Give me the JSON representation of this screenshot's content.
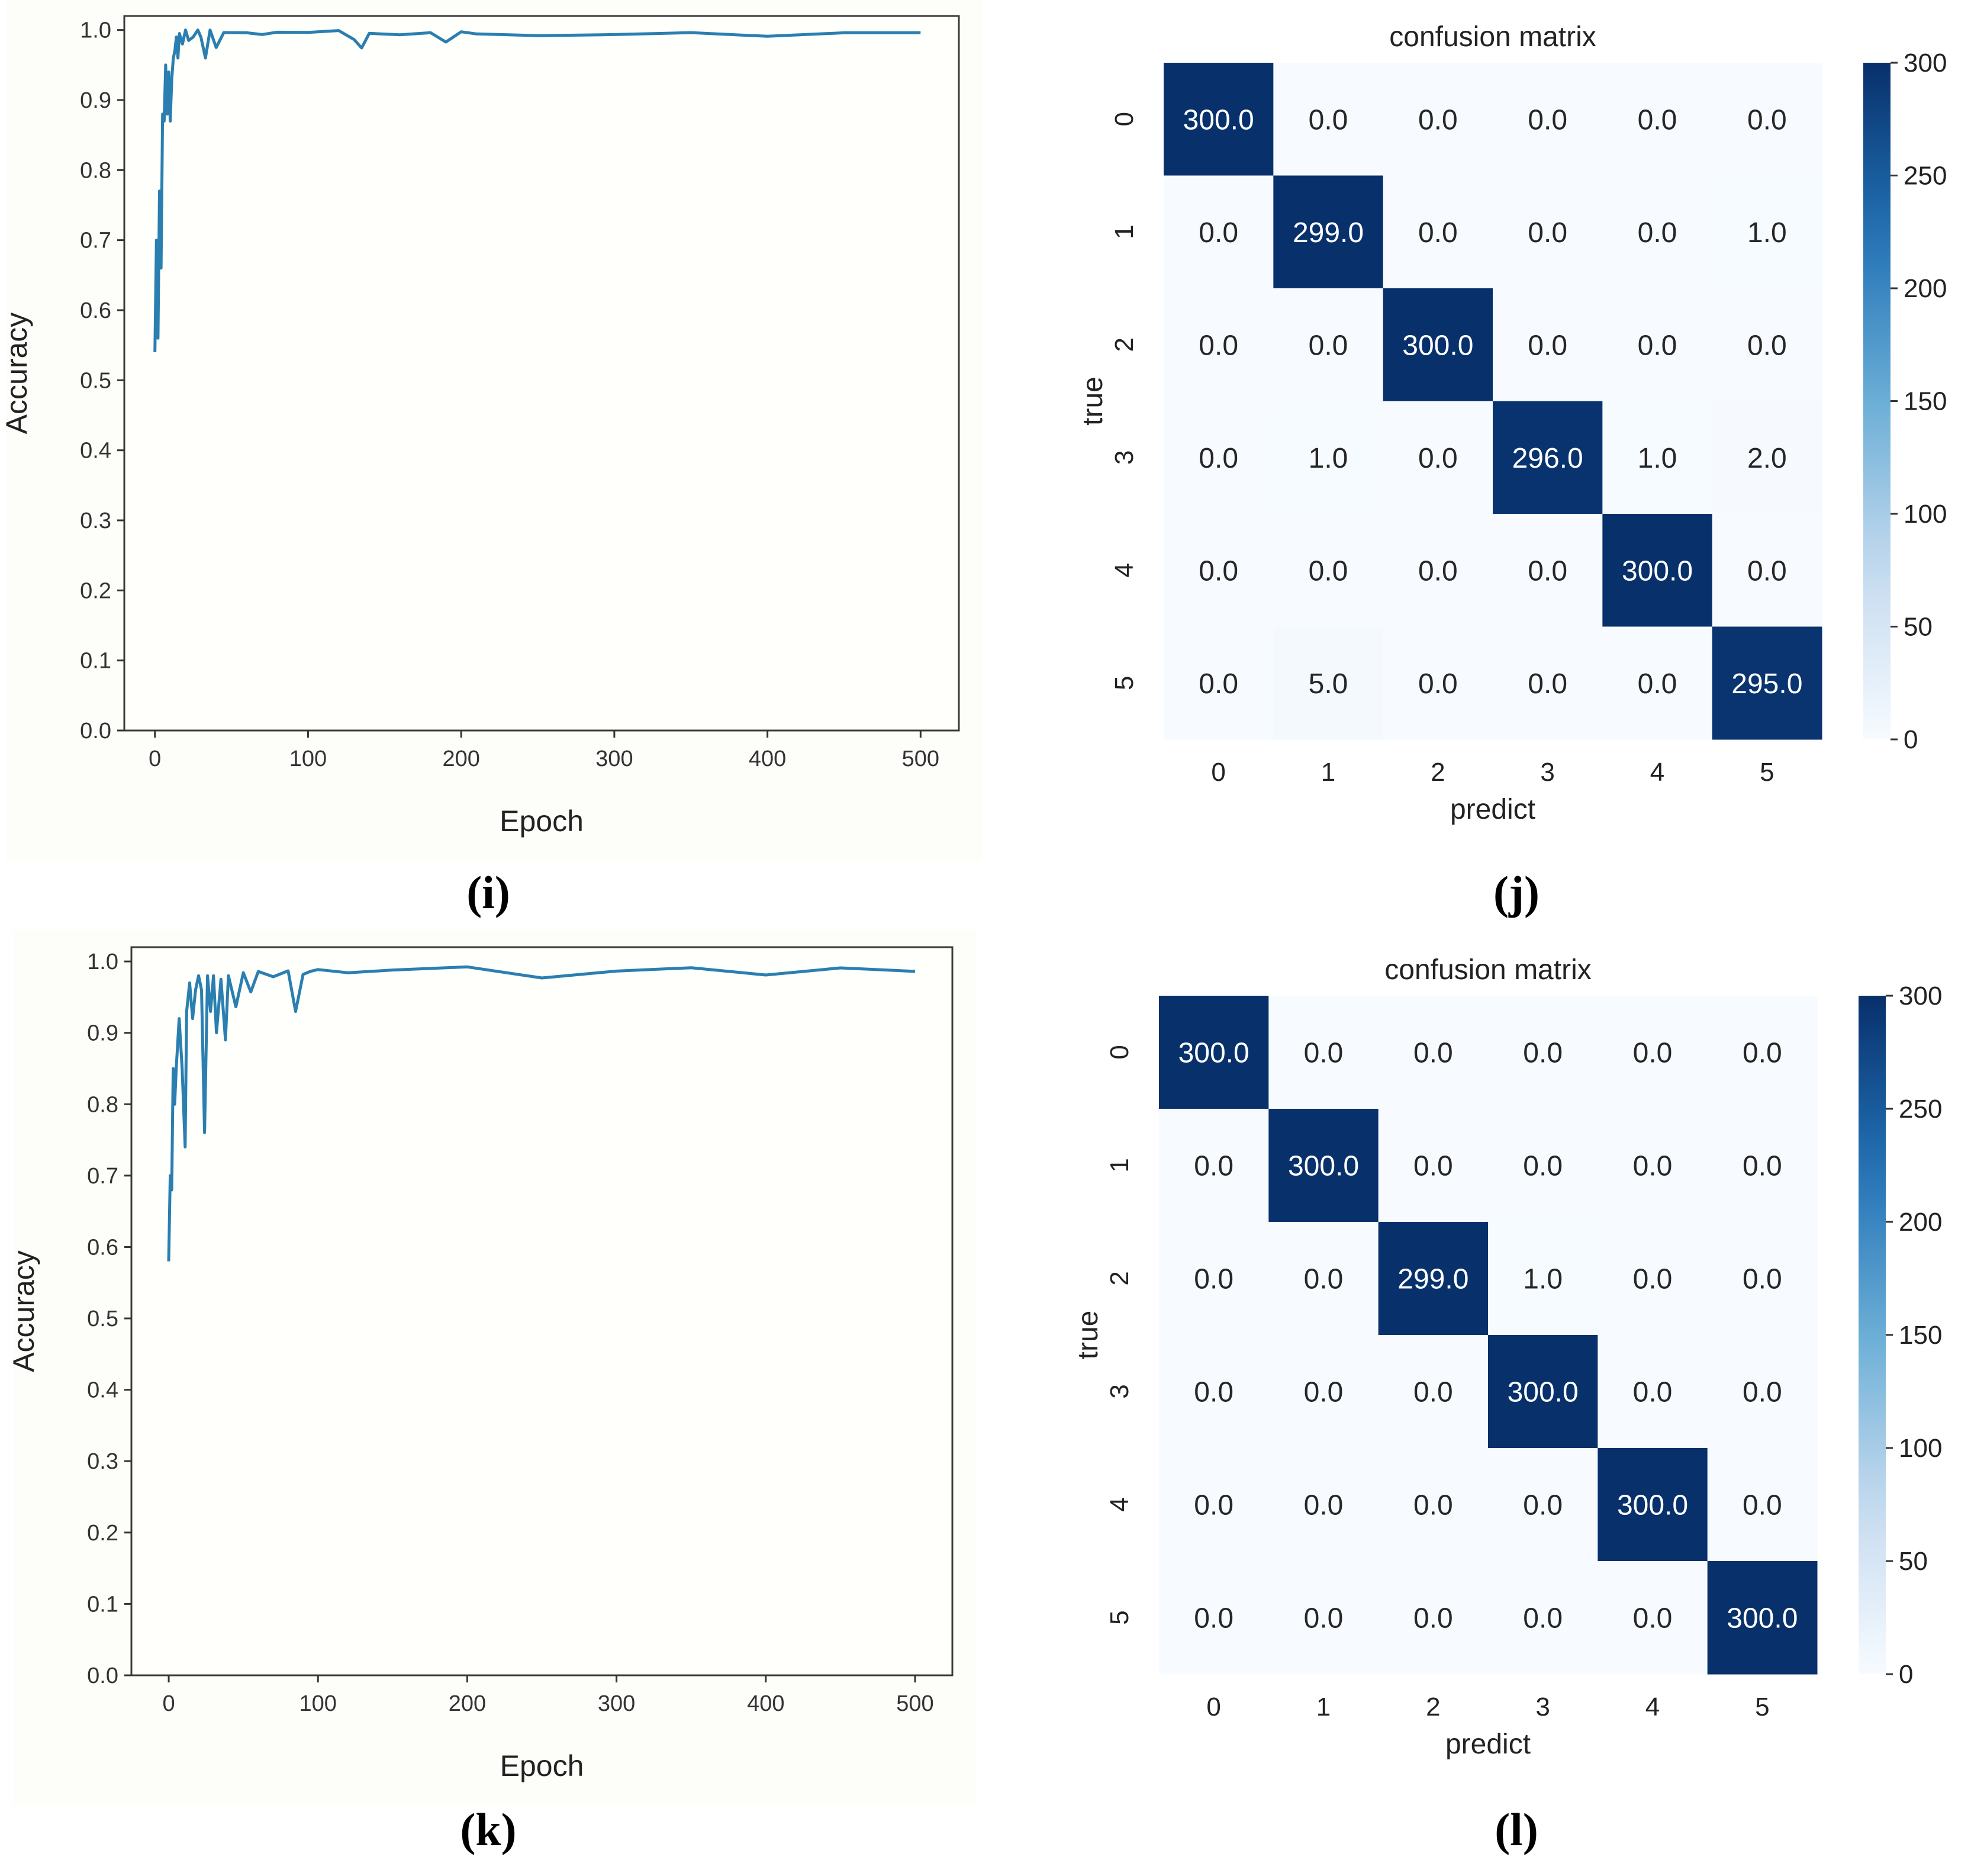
{
  "chart_data": [
    {
      "type": "line",
      "panel": "(i)",
      "xlabel": "Epoch",
      "ylabel": "Accuracy",
      "xlim": [
        -20,
        525
      ],
      "ylim": [
        0.0,
        1.02
      ],
      "xticks": [
        0,
        100,
        200,
        300,
        400,
        500
      ],
      "yticks": [
        0.0,
        0.1,
        0.2,
        0.3,
        0.4,
        0.5,
        0.6,
        0.7,
        0.8,
        0.9,
        1.0
      ],
      "color": "#2a7fb0",
      "series": [
        {
          "name": "accuracy",
          "x": [
            0,
            1,
            2,
            3,
            4,
            5,
            6,
            7,
            8,
            9,
            10,
            11,
            12,
            13,
            14,
            15,
            16,
            18,
            20,
            22,
            25,
            28,
            30,
            33,
            36,
            40,
            45,
            50,
            60,
            70,
            80,
            100,
            120,
            130,
            135,
            140,
            160,
            180,
            190,
            200,
            210,
            250,
            300,
            350,
            400,
            450,
            500
          ],
          "y": [
            0.54,
            0.7,
            0.56,
            0.77,
            0.66,
            0.88,
            0.87,
            0.95,
            0.88,
            0.94,
            0.87,
            0.93,
            0.96,
            0.97,
            0.99,
            0.96,
            0.995,
            0.98,
            1.0,
            0.985,
            0.99,
            1.0,
            0.99,
            0.96,
            1.0,
            0.975,
            1.0,
            0.997,
            1.0,
            0.995,
            1.0,
            0.998,
            1.0,
            0.99,
            0.975,
            0.998,
            0.997,
            1.0,
            0.985,
            1.0,
            0.998,
            0.995,
            0.997,
            1.0,
            0.995,
            1.0,
            1.0
          ]
        }
      ]
    },
    {
      "type": "heatmap",
      "panel": "(j)",
      "title": "confusion matrix",
      "xlabel": "predict",
      "ylabel": "true",
      "labels": [
        "0",
        "1",
        "2",
        "3",
        "4",
        "5"
      ],
      "matrix": [
        [
          "300.0",
          "0.0",
          "0.0",
          "0.0",
          "0.0",
          "0.0"
        ],
        [
          "0.0",
          "299.0",
          "0.0",
          "0.0",
          "0.0",
          "1.0"
        ],
        [
          "0.0",
          "0.0",
          "300.0",
          "0.0",
          "0.0",
          "0.0"
        ],
        [
          "0.0",
          "1.0",
          "0.0",
          "296.0",
          "1.0",
          "2.0"
        ],
        [
          "0.0",
          "0.0",
          "0.0",
          "0.0",
          "300.0",
          "0.0"
        ],
        [
          "0.0",
          "5.0",
          "0.0",
          "0.0",
          "0.0",
          "295.0"
        ]
      ],
      "colorbar": {
        "min": 0,
        "max": 300,
        "ticks": [
          "0",
          "50",
          "100",
          "150",
          "200",
          "250",
          "300"
        ]
      }
    },
    {
      "type": "line",
      "panel": "(k)",
      "xlabel": "Epoch",
      "ylabel": "Accuracy",
      "xlim": [
        -25,
        525
      ],
      "ylim": [
        0.0,
        1.02
      ],
      "xticks": [
        0,
        100,
        200,
        300,
        400,
        500
      ],
      "yticks": [
        0.0,
        0.1,
        0.2,
        0.3,
        0.4,
        0.5,
        0.6,
        0.7,
        0.8,
        0.9,
        1.0
      ],
      "color": "#2a7fb0",
      "series": [
        {
          "name": "accuracy",
          "x": [
            0,
            1,
            2,
            3,
            4,
            5,
            7,
            9,
            11,
            12,
            14,
            16,
            18,
            20,
            22,
            24,
            26,
            28,
            30,
            32,
            35,
            38,
            40,
            45,
            50,
            55,
            60,
            70,
            80,
            85,
            90,
            95,
            100,
            120,
            150,
            200,
            250,
            300,
            350,
            400,
            450,
            500
          ],
          "y": [
            0.58,
            0.7,
            0.68,
            0.85,
            0.8,
            0.85,
            0.92,
            0.85,
            0.74,
            0.93,
            0.97,
            0.92,
            0.96,
            0.98,
            0.96,
            0.76,
            0.98,
            0.93,
            0.98,
            0.9,
            0.975,
            0.89,
            0.98,
            0.94,
            0.985,
            0.96,
            0.99,
            0.98,
            0.99,
            0.93,
            0.985,
            0.99,
            0.99,
            0.985,
            0.99,
            0.995,
            0.98,
            0.99,
            0.995,
            0.985,
            0.995,
            0.99
          ]
        }
      ]
    },
    {
      "type": "heatmap",
      "panel": "(l)",
      "title": "confusion matrix",
      "xlabel": "predict",
      "ylabel": "true",
      "labels": [
        "0",
        "1",
        "2",
        "3",
        "4",
        "5"
      ],
      "matrix": [
        [
          "300.0",
          "0.0",
          "0.0",
          "0.0",
          "0.0",
          "0.0"
        ],
        [
          "0.0",
          "300.0",
          "0.0",
          "0.0",
          "0.0",
          "0.0"
        ],
        [
          "0.0",
          "0.0",
          "299.0",
          "1.0",
          "0.0",
          "0.0"
        ],
        [
          "0.0",
          "0.0",
          "0.0",
          "300.0",
          "0.0",
          "0.0"
        ],
        [
          "0.0",
          "0.0",
          "0.0",
          "0.0",
          "300.0",
          "0.0"
        ],
        [
          "0.0",
          "0.0",
          "0.0",
          "0.0",
          "0.0",
          "300.0"
        ]
      ],
      "colorbar": {
        "min": 0,
        "max": 300,
        "ticks": [
          "0",
          "50",
          "100",
          "150",
          "200",
          "250",
          "300"
        ]
      }
    }
  ]
}
